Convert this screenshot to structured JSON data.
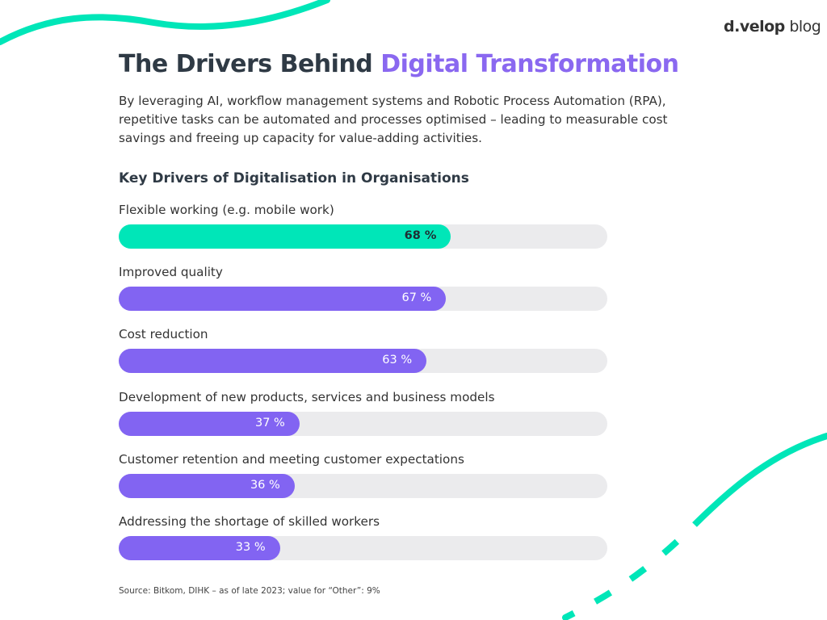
{
  "logo": {
    "brand": "d.velop",
    "suffix": "blog"
  },
  "header": {
    "title_plain": "The Drivers Behind ",
    "title_highlight": "Digital Transformation",
    "description": "By leveraging AI, workflow management systems and Robotic Process Automation (RPA), repetitive tasks can be automated and processes optimised – leading to measurable cost savings and freeing up capacity for value-adding activities."
  },
  "colors": {
    "accent_green": "#00e6b8",
    "accent_purple": "#8264f2",
    "track": "#ebebed",
    "title_highlight": "#8a68f0"
  },
  "chart_data": {
    "type": "bar",
    "orientation": "horizontal",
    "title": "Key Drivers of Digitalisation in Organisations",
    "xlim": [
      0,
      100
    ],
    "unit": "%",
    "categories": [
      "Flexible working (e.g. mobile work)",
      "Improved quality",
      "Cost reduction",
      "Development of new products, services and business models",
      "Customer retention and meeting customer expectations",
      "Addressing the shortage of skilled workers"
    ],
    "values": [
      68,
      67,
      63,
      37,
      36,
      33
    ],
    "value_labels": [
      "68 %",
      "67 %",
      "63 %",
      "37 %",
      "36 %",
      "33 %"
    ],
    "bar_colors": [
      "#00e6b8",
      "#8264f2",
      "#8264f2",
      "#8264f2",
      "#8264f2",
      "#8264f2"
    ]
  },
  "footer": {
    "source": "Source: Bitkom, DIHK – as of late 2023; value for “Other”: 9%"
  }
}
